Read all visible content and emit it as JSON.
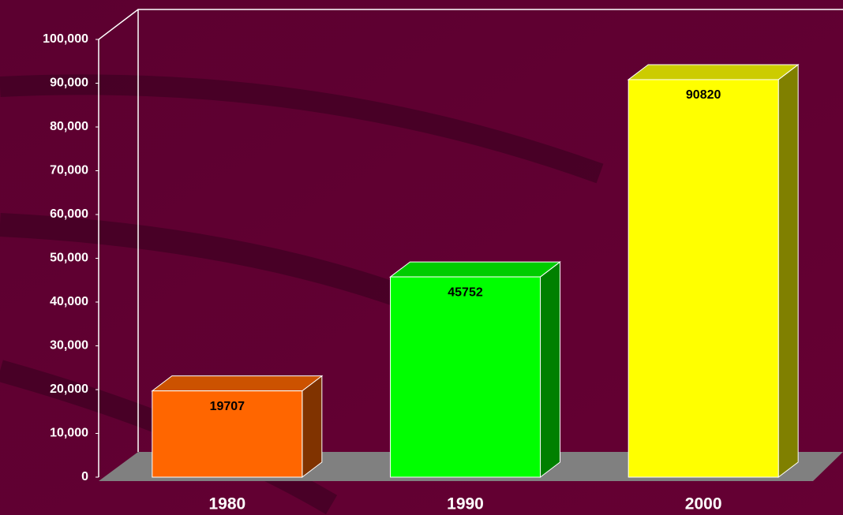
{
  "chart_data": {
    "type": "bar3d",
    "categories": [
      "1980",
      "1990",
      "2000"
    ],
    "values": [
      19707,
      45752,
      90820
    ],
    "colors": [
      "#ff6600",
      "#00ff00",
      "#ffff00"
    ],
    "ylim": [
      0,
      100000
    ],
    "yticks": [
      0,
      {
        "value": 10000,
        "label": "10,000"
      },
      {
        "value": 20000,
        "label": "20,000"
      },
      {
        "value": 30000,
        "label": "30,000"
      },
      {
        "value": 40000,
        "label": "40,000"
      },
      {
        "value": 50000,
        "label": "50,000"
      },
      {
        "value": 60000,
        "label": "60,000"
      },
      {
        "value": 70000,
        "label": "70,000"
      },
      {
        "value": 80000,
        "label": "80,000"
      },
      {
        "value": 90000,
        "label": "90,000"
      },
      {
        "value": 100000,
        "label": "100,000"
      }
    ],
    "grid": false
  }
}
